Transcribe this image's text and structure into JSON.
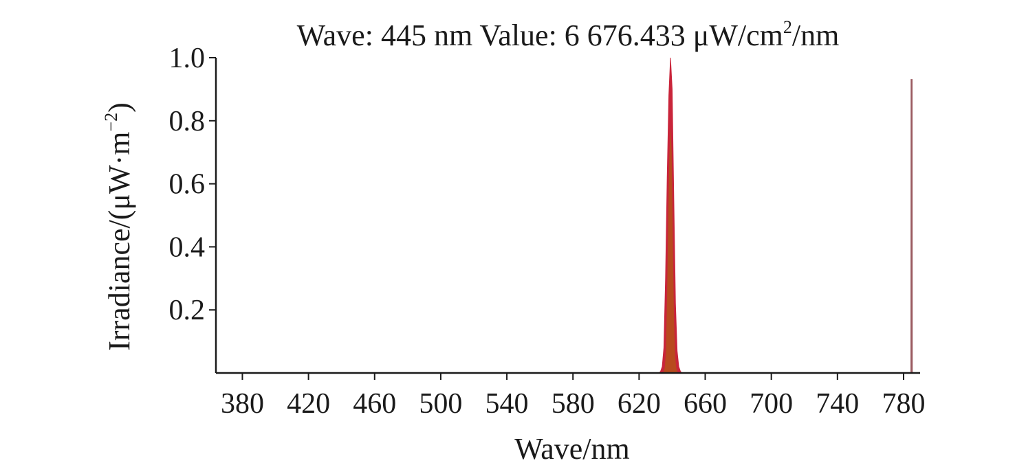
{
  "chart_data": {
    "type": "area",
    "title": {
      "wave_label": "Wave:",
      "wave_value": "445",
      "wave_unit": "nm",
      "value_label": "Value:",
      "value_value": "6 676.433",
      "value_unit_base": "μW/cm",
      "value_unit_sup": "2",
      "value_unit_tail": "/nm"
    },
    "xlabel": "Wave/nm",
    "ylabel": {
      "base": "Irradiance/(μW·m",
      "sup": "−2",
      "tail": ")"
    },
    "xlim": [
      364,
      790
    ],
    "ylim": [
      0,
      1.0
    ],
    "x_ticks": [
      380,
      420,
      460,
      500,
      540,
      580,
      620,
      660,
      700,
      740,
      780
    ],
    "y_ticks": [
      0.2,
      0.4,
      0.6,
      0.8,
      1.0
    ],
    "y_tick_labels": [
      "0.2",
      "0.4",
      "0.6",
      "0.8",
      "1.0"
    ],
    "series": [
      {
        "color": "#c9253a",
        "inner_color": "#b84a1e",
        "points": [
          [
            632,
            0.0
          ],
          [
            633,
            0.005
          ],
          [
            634,
            0.02
          ],
          [
            635,
            0.08
          ],
          [
            636,
            0.3
          ],
          [
            637,
            0.62
          ],
          [
            638,
            0.88
          ],
          [
            639,
            1.0
          ],
          [
            640,
            0.9
          ],
          [
            641,
            0.55
          ],
          [
            642,
            0.22
          ],
          [
            643,
            0.07
          ],
          [
            644,
            0.02
          ],
          [
            645,
            0.005
          ],
          [
            646,
            0.0
          ]
        ]
      },
      {
        "color": "#9a5a60",
        "points": [
          [
            784.6,
            0.0
          ],
          [
            784.7,
            0.93
          ],
          [
            785.0,
            0.93
          ],
          [
            785.1,
            0.0
          ]
        ]
      }
    ]
  }
}
